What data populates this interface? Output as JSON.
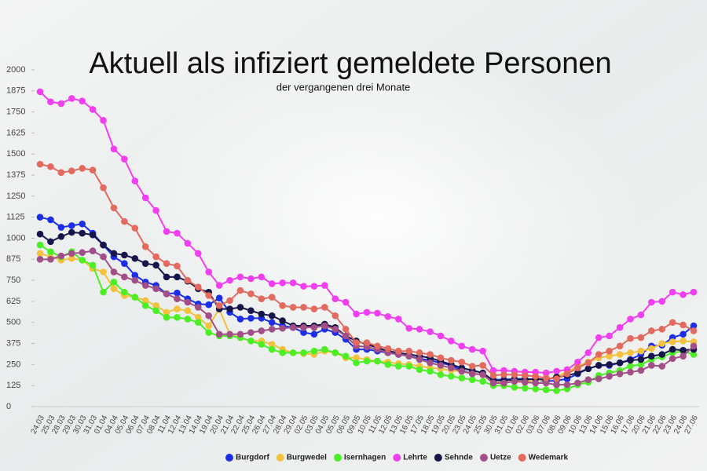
{
  "chart_data": {
    "type": "line",
    "title": "Aktuell als infiziert gemeldete Personen",
    "subtitle": "der vergangenen drei Monate",
    "categories": [
      "24.03",
      "25.03",
      "28.03",
      "29.03",
      "30.03",
      "31.03",
      "01.04",
      "04.04",
      "05.04",
      "06.04",
      "07.04",
      "08.04",
      "11.04",
      "12.04",
      "13.04",
      "14.04",
      "19.04",
      "20.04",
      "21.04",
      "22.04",
      "25.04",
      "26.04",
      "27.04",
      "28.04",
      "29.04",
      "02.05",
      "03.05",
      "04.05",
      "05.05",
      "06.05",
      "09.05",
      "10.05",
      "11.05",
      "12.05",
      "13.05",
      "16.05",
      "17.05",
      "18.05",
      "19.05",
      "20.05",
      "23.05",
      "24.05",
      "25.05",
      "30.05",
      "31.05",
      "01.06",
      "02.06",
      "03.06",
      "07.06",
      "08.06",
      "09.06",
      "10.06",
      "13.06",
      "14.06",
      "15.06",
      "16.06",
      "17.06",
      "20.06",
      "21.06",
      "22.06",
      "23.06",
      "24.06",
      "27.06"
    ],
    "ylim": [
      0,
      2000
    ],
    "yticks": [
      0,
      125,
      250,
      375,
      500,
      625,
      750,
      875,
      1000,
      1125,
      1250,
      1375,
      1500,
      1625,
      1750,
      1875,
      2000
    ],
    "series": [
      {
        "name": "Burgdorf",
        "color": "#1d2fe6",
        "values": [
          1125,
          1110,
          1065,
          1075,
          1085,
          1030,
          960,
          890,
          850,
          780,
          740,
          720,
          670,
          675,
          640,
          610,
          605,
          645,
          560,
          520,
          525,
          525,
          500,
          480,
          470,
          440,
          430,
          460,
          440,
          400,
          340,
          340,
          330,
          320,
          310,
          300,
          285,
          275,
          260,
          245,
          215,
          200,
          190,
          160,
          160,
          165,
          165,
          160,
          150,
          155,
          165,
          195,
          225,
          245,
          245,
          260,
          280,
          310,
          360,
          365,
          410,
          430,
          480
        ]
      },
      {
        "name": "Burgwedel",
        "color": "#f2c23e",
        "values": [
          910,
          890,
          870,
          880,
          870,
          820,
          800,
          700,
          660,
          650,
          630,
          600,
          560,
          580,
          570,
          530,
          480,
          580,
          430,
          410,
          390,
          390,
          370,
          340,
          320,
          315,
          310,
          330,
          320,
          290,
          290,
          280,
          270,
          265,
          255,
          250,
          240,
          230,
          225,
          215,
          210,
          200,
          190,
          145,
          140,
          150,
          150,
          155,
          160,
          180,
          205,
          240,
          265,
          290,
          300,
          310,
          320,
          330,
          345,
          375,
          385,
          390,
          385
        ]
      },
      {
        "name": "Isernhagen",
        "color": "#4cee26",
        "values": [
          960,
          920,
          890,
          920,
          870,
          840,
          680,
          740,
          680,
          650,
          600,
          570,
          530,
          530,
          520,
          500,
          440,
          420,
          420,
          410,
          390,
          370,
          340,
          320,
          320,
          320,
          330,
          340,
          320,
          300,
          260,
          270,
          270,
          250,
          240,
          240,
          220,
          210,
          190,
          180,
          170,
          160,
          150,
          125,
          125,
          115,
          110,
          105,
          100,
          95,
          105,
          130,
          145,
          185,
          200,
          215,
          240,
          250,
          280,
          295,
          320,
          330,
          310
        ]
      },
      {
        "name": "Lehrte",
        "color": "#f03ff0",
        "values": [
          1870,
          1810,
          1800,
          1830,
          1815,
          1765,
          1700,
          1530,
          1470,
          1340,
          1240,
          1165,
          1040,
          1030,
          970,
          910,
          800,
          720,
          750,
          770,
          760,
          770,
          730,
          735,
          735,
          715,
          715,
          720,
          640,
          620,
          550,
          560,
          555,
          535,
          520,
          465,
          460,
          445,
          420,
          390,
          360,
          340,
          330,
          215,
          215,
          210,
          205,
          205,
          200,
          210,
          220,
          265,
          320,
          410,
          420,
          470,
          520,
          545,
          620,
          625,
          680,
          665,
          680
        ]
      },
      {
        "name": "Sehnde",
        "color": "#16164a",
        "values": [
          1025,
          980,
          1010,
          1035,
          1030,
          1020,
          960,
          910,
          900,
          880,
          850,
          840,
          770,
          770,
          745,
          700,
          680,
          580,
          580,
          590,
          570,
          550,
          540,
          510,
          480,
          480,
          480,
          490,
          470,
          420,
          390,
          370,
          350,
          330,
          320,
          310,
          300,
          290,
          270,
          250,
          230,
          215,
          200,
          155,
          155,
          160,
          160,
          165,
          160,
          175,
          185,
          200,
          225,
          245,
          250,
          260,
          275,
          280,
          300,
          310,
          340,
          335,
          340
        ]
      },
      {
        "name": "Uetze",
        "color": "#a14f86",
        "values": [
          875,
          875,
          895,
          910,
          915,
          925,
          890,
          800,
          770,
          750,
          720,
          700,
          670,
          640,
          620,
          590,
          540,
          430,
          430,
          430,
          440,
          450,
          460,
          465,
          470,
          470,
          470,
          480,
          460,
          420,
          360,
          355,
          340,
          320,
          310,
          300,
          280,
          260,
          245,
          230,
          210,
          195,
          190,
          140,
          140,
          150,
          145,
          140,
          140,
          130,
          130,
          140,
          160,
          165,
          180,
          195,
          205,
          215,
          245,
          240,
          285,
          300,
          360
        ]
      },
      {
        "name": "Wedemark",
        "color": "#e36a5e",
        "values": [
          1440,
          1425,
          1390,
          1400,
          1415,
          1405,
          1300,
          1180,
          1100,
          1060,
          950,
          890,
          850,
          835,
          750,
          710,
          660,
          600,
          630,
          690,
          670,
          640,
          650,
          600,
          590,
          590,
          580,
          590,
          540,
          460,
          380,
          380,
          360,
          345,
          330,
          330,
          320,
          310,
          290,
          275,
          265,
          240,
          245,
          185,
          190,
          190,
          185,
          180,
          170,
          165,
          195,
          230,
          260,
          310,
          330,
          360,
          405,
          410,
          450,
          460,
          500,
          485,
          450
        ]
      }
    ]
  }
}
